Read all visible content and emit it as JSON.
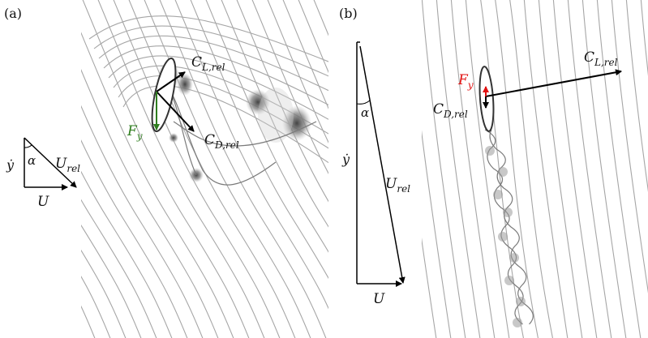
{
  "panels": [
    {
      "id": "a",
      "label": "(a)",
      "triangle": {
        "ydot": "ẏ",
        "alpha": "α",
        "u_rel": "U",
        "u_rel_sub": "rel",
        "u": "U"
      },
      "vectors": {
        "lift": "C",
        "lift_sub": "L,rel",
        "drag": "C",
        "drag_sub": "D,rel",
        "force": "F",
        "force_sub": "y"
      },
      "colors": {
        "force": "#2e7d1e"
      }
    },
    {
      "id": "b",
      "label": "(b)",
      "triangle": {
        "ydot": "ẏ",
        "alpha": "α",
        "u_rel": "U",
        "u_rel_sub": "rel",
        "u": "U"
      },
      "vectors": {
        "lift": "C",
        "lift_sub": "L,rel",
        "drag": "C",
        "drag_sub": "D,rel",
        "force": "F",
        "force_sub": "y"
      },
      "colors": {
        "force": "#e01010"
      }
    }
  ]
}
